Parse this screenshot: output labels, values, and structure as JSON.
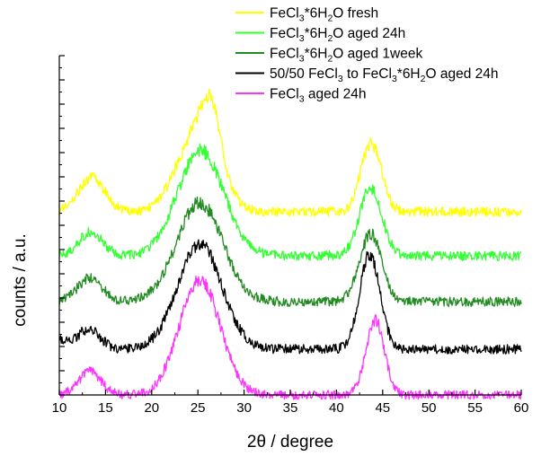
{
  "chart_data": {
    "type": "line",
    "title": "",
    "xlabel": "2θ / degree",
    "ylabel": "counts / a.u.",
    "xlim": [
      10,
      60
    ],
    "xticks": [
      "10",
      "15",
      "20",
      "25",
      "30",
      "35",
      "40",
      "45",
      "50",
      "55",
      "60"
    ],
    "y_tick_labels": "none",
    "grid": false,
    "legend_position": "top-right",
    "legend": [
      {
        "parts": [
          {
            "t": "FeCl"
          },
          {
            "t": "3",
            "sub": true
          },
          {
            "t": "*6H"
          },
          {
            "t": "2",
            "sub": true
          },
          {
            "t": "O fresh"
          }
        ]
      },
      {
        "parts": [
          {
            "t": "FeCl"
          },
          {
            "t": "3",
            "sub": true
          },
          {
            "t": "*6H"
          },
          {
            "t": "2",
            "sub": true
          },
          {
            "t": "O aged 24h"
          }
        ]
      },
      {
        "parts": [
          {
            "t": "FeCl"
          },
          {
            "t": "3",
            "sub": true
          },
          {
            "t": "*6H"
          },
          {
            "t": "2",
            "sub": true
          },
          {
            "t": "O aged 1week"
          }
        ]
      },
      {
        "parts": [
          {
            "t": "50/50 FeCl"
          },
          {
            "t": "3",
            "sub": true
          },
          {
            "t": " to FeCl"
          },
          {
            "t": "3",
            "sub": true
          },
          {
            "t": "*6H"
          },
          {
            "t": "2",
            "sub": true
          },
          {
            "t": "O aged 24h"
          }
        ]
      },
      {
        "parts": [
          {
            "t": "FeCl"
          },
          {
            "t": "3",
            "sub": true
          },
          {
            "t": " aged 24h"
          }
        ]
      }
    ],
    "series": [
      {
        "color": "#ffff00",
        "offset": 0.54,
        "noise": 0.028,
        "background": 0.0,
        "peaks": [
          [
            13.5,
            0.1,
            1.4
          ],
          [
            25.0,
            0.24,
            2.2
          ],
          [
            26.5,
            0.14,
            1.0
          ],
          [
            43.2,
            0.13,
            0.9
          ],
          [
            44.4,
            0.12,
            0.9
          ]
        ]
      },
      {
        "color": "#33ff33",
        "offset": 0.41,
        "noise": 0.028,
        "background": 0.0,
        "peaks": [
          [
            13.4,
            0.07,
            1.3
          ],
          [
            25.3,
            0.31,
            2.5
          ],
          [
            43.7,
            0.2,
            1.2
          ]
        ]
      },
      {
        "color": "#228b22",
        "offset": 0.275,
        "noise": 0.028,
        "background": 0.0,
        "peaks": [
          [
            13.3,
            0.07,
            1.3
          ],
          [
            25.2,
            0.29,
            2.5
          ],
          [
            43.7,
            0.2,
            1.2
          ]
        ]
      },
      {
        "color": "#000000",
        "offset": 0.135,
        "noise": 0.028,
        "background": 0.025,
        "peaks": [
          [
            13.2,
            0.06,
            1.2
          ],
          [
            25.2,
            0.31,
            2.4
          ],
          [
            43.6,
            0.28,
            1.1
          ]
        ]
      },
      {
        "color": "#ff33ff",
        "offset": 0.0,
        "noise": 0.026,
        "background": 0.0,
        "peaks": [
          [
            13.3,
            0.07,
            1.2
          ],
          [
            25.2,
            0.34,
            2.2
          ],
          [
            44.2,
            0.22,
            1.0
          ]
        ]
      }
    ]
  }
}
